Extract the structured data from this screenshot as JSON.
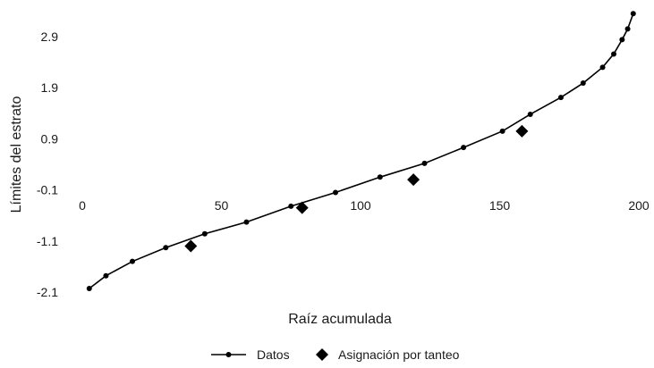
{
  "chart_data": {
    "type": "line",
    "title": "",
    "xlabel": "Raíz acumulada",
    "ylabel": "Límites del estrato",
    "xlim": [
      0,
      200
    ],
    "ylim": [
      -2.1,
      3.5
    ],
    "grid": false,
    "legend_position": "bottom",
    "x_ticks": [
      0,
      50,
      100,
      150,
      200
    ],
    "x_tick_labels": [
      "0",
      "50",
      "100",
      "150",
      "200"
    ],
    "y_ticks": [
      -2.1,
      -1.1,
      -0.1,
      0.9,
      1.9,
      2.9
    ],
    "y_tick_labels": [
      "-2.1",
      "-1.1",
      "-0.1",
      "0.9",
      "1.9",
      "2.9"
    ],
    "series": [
      {
        "name": "Datos",
        "marker": "circle",
        "line": true,
        "color": "#000000",
        "points": [
          [
            2.5,
            -2.03
          ],
          [
            8.5,
            -1.78
          ],
          [
            18,
            -1.5
          ],
          [
            30,
            -1.23
          ],
          [
            44,
            -0.96
          ],
          [
            59,
            -0.73
          ],
          [
            75,
            -0.42
          ],
          [
            91,
            -0.15
          ],
          [
            107,
            0.15
          ],
          [
            123,
            0.42
          ],
          [
            137,
            0.73
          ],
          [
            151,
            1.05
          ],
          [
            161,
            1.38
          ],
          [
            172,
            1.71
          ],
          [
            180,
            1.99
          ],
          [
            187,
            2.3
          ],
          [
            191,
            2.56
          ],
          [
            194,
            2.84
          ],
          [
            196,
            3.05
          ],
          [
            198,
            3.35
          ]
        ]
      },
      {
        "name": "Asignación por tanteo",
        "marker": "diamond",
        "line": false,
        "color": "#000000",
        "points": [
          [
            39,
            -1.2
          ],
          [
            79,
            -0.45
          ],
          [
            119,
            0.1
          ],
          [
            158,
            1.05
          ]
        ]
      }
    ]
  }
}
